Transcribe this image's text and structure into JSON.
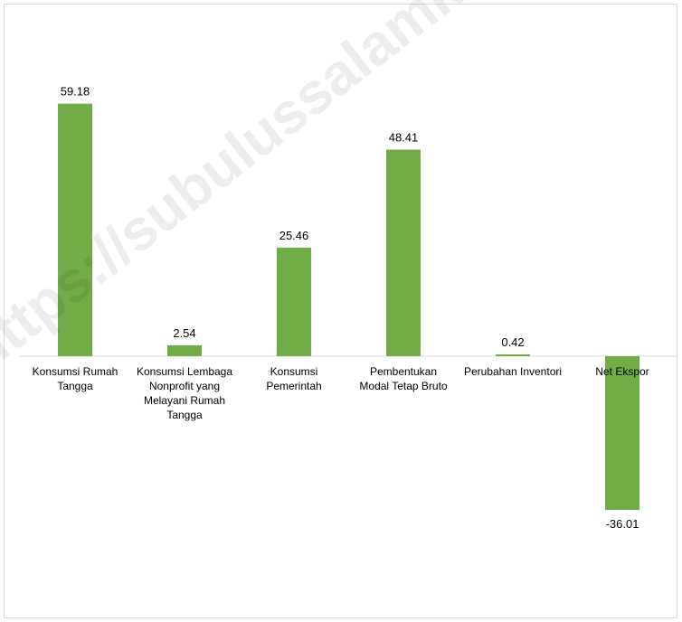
{
  "chart_data": {
    "type": "bar",
    "categories": [
      [
        "Konsumsi Rumah",
        "Tangga"
      ],
      [
        "Konsumsi Lembaga",
        "Nonprofit yang",
        "Melayani Rumah",
        "Tangga"
      ],
      [
        "Konsumsi",
        "Pemerintah"
      ],
      [
        "Pembentukan",
        "Modal Tetap Bruto"
      ],
      [
        "Perubahan Inventori"
      ],
      [
        "Net Ekspor"
      ]
    ],
    "values": [
      59.18,
      2.54,
      25.46,
      48.41,
      0.42,
      -36.01
    ],
    "value_labels": [
      "59.18",
      "2.54",
      "25.46",
      "48.41",
      "0.42",
      "-36.01"
    ],
    "title": "",
    "xlabel": "",
    "ylabel": "",
    "grid": false,
    "legend": "none",
    "bar_color": "#70ad47"
  },
  "watermark": "https://subulussalamkota.bps.go.id"
}
